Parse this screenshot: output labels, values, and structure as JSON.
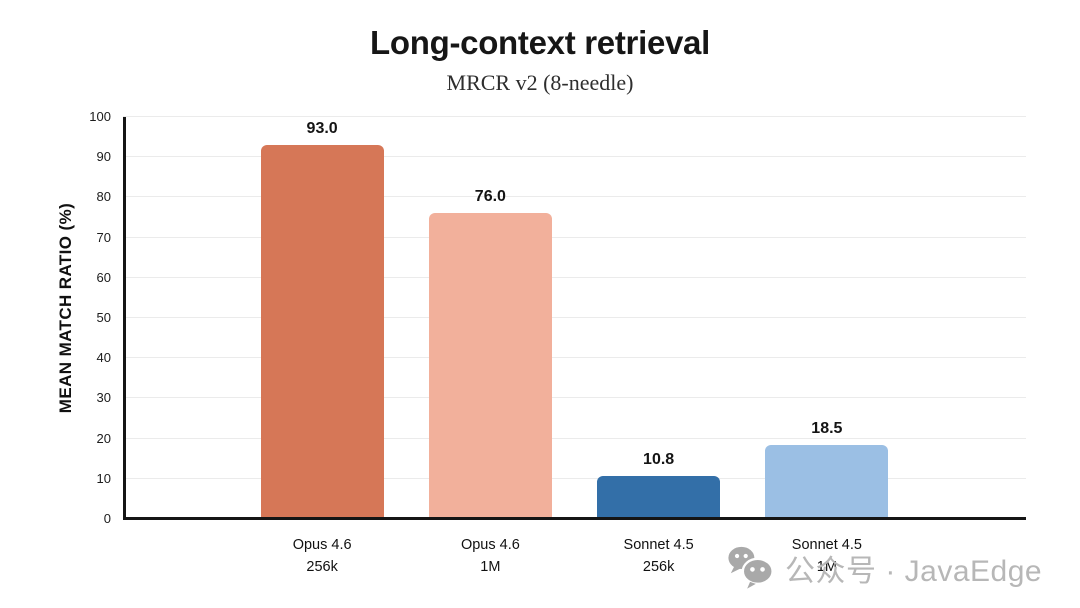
{
  "page": {
    "background": "#ffffff"
  },
  "watermark": {
    "icon": "wechat-icon",
    "text": "公众号 · JavaEdge",
    "color": "#b7b7b7"
  },
  "chart_data": {
    "type": "bar",
    "title": "Long-context retrieval",
    "subtitle": "MRCR v2 (8-needle)",
    "ylabel": "MEAN MATCH RATIO (%)",
    "xlabel": "",
    "ylim": [
      0,
      100
    ],
    "ytick_step": 10,
    "yticks": [
      0,
      10,
      20,
      30,
      40,
      50,
      60,
      70,
      80,
      90,
      100
    ],
    "grid": true,
    "legend": "none",
    "categories": [
      {
        "label": "Opus 4.6",
        "sublabel": "256k"
      },
      {
        "label": "Opus 4.6",
        "sublabel": "1M"
      },
      {
        "label": "Sonnet 4.5",
        "sublabel": "256k"
      },
      {
        "label": "Sonnet 4.5",
        "sublabel": "1M"
      }
    ],
    "values": [
      93.0,
      76.0,
      10.8,
      18.5
    ],
    "value_labels": [
      "93.0",
      "76.0",
      "10.8",
      "18.5"
    ],
    "bar_colors": [
      "#d67757",
      "#f2b09b",
      "#336fa8",
      "#9bbfe4"
    ],
    "axis_color": "#151515",
    "grid_color": "#ebebeb"
  }
}
